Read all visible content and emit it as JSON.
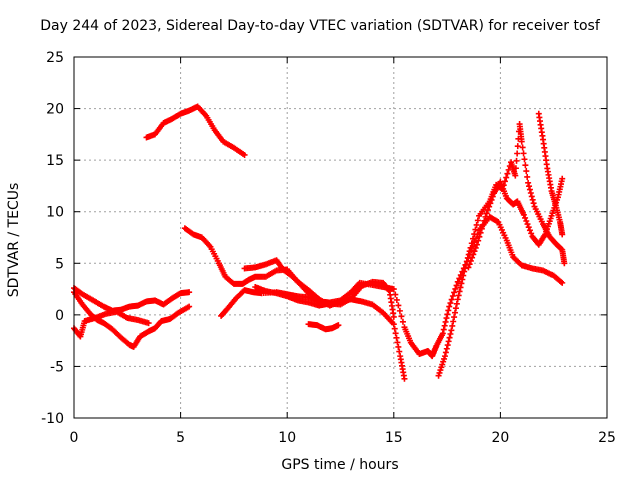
{
  "chart_data": {
    "type": "scatter",
    "title": "Day 244 of 2023, Sidereal Day-to-day VTEC variation (SDTVAR) for receiver tosf",
    "xlabel": "GPS time / hours",
    "ylabel": "SDTVAR / TECUs",
    "xlim": [
      0,
      25
    ],
    "ylim": [
      -10,
      25
    ],
    "xticks": [
      0,
      5,
      10,
      15,
      20,
      25
    ],
    "yticks": [
      -10,
      -5,
      0,
      5,
      10,
      15,
      20,
      25
    ],
    "grid": true,
    "marker": "+",
    "color": "#ff0000",
    "series": [
      {
        "name": "trace-1",
        "points": [
          [
            0,
            2.6
          ],
          [
            0.4,
            2.0
          ],
          [
            0.9,
            1.4
          ],
          [
            1.4,
            0.8
          ],
          [
            1.8,
            0.4
          ],
          [
            2.2,
            0.5
          ],
          [
            2.6,
            0.8
          ],
          [
            3.0,
            0.9
          ],
          [
            3.4,
            1.3
          ],
          [
            3.8,
            1.4
          ],
          [
            4.2,
            1.0
          ],
          [
            4.6,
            1.6
          ],
          [
            5.0,
            2.1
          ],
          [
            5.4,
            2.2
          ]
        ]
      },
      {
        "name": "trace-2",
        "points": [
          [
            0,
            2.2
          ],
          [
            0.4,
            1.0
          ],
          [
            0.8,
            0.0
          ],
          [
            1.1,
            -0.5
          ],
          [
            1.4,
            -0.8
          ],
          [
            1.8,
            -1.4
          ],
          [
            2.2,
            -2.2
          ],
          [
            2.6,
            -2.9
          ],
          [
            2.8,
            -3.1
          ],
          [
            3.1,
            -2.1
          ],
          [
            3.5,
            -1.6
          ],
          [
            3.8,
            -1.3
          ],
          [
            4.1,
            -0.6
          ],
          [
            4.5,
            -0.4
          ],
          [
            4.9,
            0.2
          ],
          [
            5.4,
            0.8
          ]
        ]
      },
      {
        "name": "trace-3",
        "points": [
          [
            0,
            -1.3
          ],
          [
            0.3,
            -2.1
          ],
          [
            0.5,
            -0.6
          ],
          [
            1.0,
            -0.3
          ],
          [
            1.5,
            0.1
          ],
          [
            2.0,
            0.3
          ],
          [
            2.5,
            -0.3
          ],
          [
            3.0,
            -0.5
          ],
          [
            3.5,
            -0.8
          ]
        ]
      },
      {
        "name": "trace-4",
        "points": [
          [
            3.4,
            17.2
          ],
          [
            3.8,
            17.5
          ],
          [
            4.2,
            18.6
          ],
          [
            4.6,
            19.0
          ],
          [
            5.0,
            19.5
          ],
          [
            5.4,
            19.8
          ],
          [
            5.8,
            20.2
          ],
          [
            6.2,
            19.3
          ],
          [
            6.6,
            17.9
          ],
          [
            7.0,
            16.8
          ],
          [
            7.5,
            16.2
          ],
          [
            8.0,
            15.5
          ]
        ]
      },
      {
        "name": "trace-5",
        "points": [
          [
            5.2,
            8.4
          ],
          [
            5.6,
            7.8
          ],
          [
            6.0,
            7.5
          ],
          [
            6.4,
            6.6
          ],
          [
            6.8,
            5.0
          ],
          [
            7.1,
            3.7
          ],
          [
            7.5,
            3.0
          ],
          [
            7.9,
            3.0
          ],
          [
            8.2,
            3.4
          ],
          [
            8.5,
            3.7
          ],
          [
            9.0,
            3.7
          ],
          [
            9.5,
            4.3
          ],
          [
            10.0,
            4.4
          ],
          [
            10.5,
            3.2
          ],
          [
            11.0,
            2.4
          ],
          [
            11.5,
            1.5
          ],
          [
            12.0,
            0.9
          ],
          [
            12.5,
            1.3
          ],
          [
            13.0,
            1.5
          ],
          [
            13.5,
            1.3
          ],
          [
            14.0,
            1.0
          ],
          [
            14.5,
            0.2
          ],
          [
            15.0,
            -0.9
          ],
          [
            15.3,
            -4.0
          ],
          [
            15.5,
            -6.2
          ]
        ]
      },
      {
        "name": "trace-6",
        "points": [
          [
            6.9,
            -0.1
          ],
          [
            7.2,
            0.6
          ],
          [
            7.6,
            1.6
          ],
          [
            8.0,
            2.4
          ],
          [
            8.4,
            2.2
          ],
          [
            8.8,
            2.1
          ],
          [
            9.5,
            2.2
          ],
          [
            10.0,
            2.0
          ],
          [
            10.5,
            1.8
          ],
          [
            11.0,
            1.7
          ],
          [
            11.5,
            1.3
          ],
          [
            12.0,
            1.2
          ],
          [
            12.5,
            1.4
          ],
          [
            13.0,
            2.2
          ],
          [
            13.4,
            3.1
          ],
          [
            14.0,
            2.9
          ],
          [
            14.5,
            2.7
          ],
          [
            15.0,
            2.5
          ],
          [
            15.5,
            -1.2
          ],
          [
            15.8,
            -2.7
          ],
          [
            16.2,
            -3.8
          ],
          [
            16.6,
            -3.5
          ],
          [
            16.8,
            -4.0
          ],
          [
            17.0,
            -3.0
          ],
          [
            17.3,
            -1.8
          ],
          [
            17.6,
            0.8
          ],
          [
            18.0,
            3.2
          ],
          [
            18.5,
            5.5
          ],
          [
            19.0,
            8.2
          ],
          [
            19.5,
            9.5
          ],
          [
            19.9,
            9.0
          ],
          [
            20.3,
            7.2
          ],
          [
            20.6,
            5.6
          ],
          [
            21.0,
            4.8
          ],
          [
            21.5,
            4.5
          ],
          [
            22.0,
            4.3
          ],
          [
            22.5,
            3.8
          ],
          [
            22.9,
            3.1
          ]
        ]
      },
      {
        "name": "trace-7",
        "points": [
          [
            8.0,
            4.5
          ],
          [
            8.5,
            4.6
          ],
          [
            9.0,
            4.9
          ],
          [
            9.5,
            5.3
          ],
          [
            9.8,
            4.4
          ],
          [
            10.2,
            3.8
          ],
          [
            10.6,
            3.0
          ],
          [
            11.0,
            2.1
          ],
          [
            11.5,
            1.5
          ]
        ]
      },
      {
        "name": "trace-8",
        "points": [
          [
            11.0,
            -0.9
          ],
          [
            11.4,
            -1.0
          ],
          [
            11.8,
            -1.4
          ],
          [
            12.1,
            -1.3
          ],
          [
            12.4,
            -1.0
          ]
        ]
      },
      {
        "name": "trace-9",
        "points": [
          [
            17.1,
            -5.9
          ],
          [
            17.4,
            -4.0
          ],
          [
            17.7,
            -1.5
          ],
          [
            18.0,
            1.5
          ],
          [
            18.3,
            4.2
          ],
          [
            18.6,
            6.5
          ],
          [
            19.0,
            9.6
          ],
          [
            19.5,
            11.0
          ],
          [
            19.8,
            12.6
          ],
          [
            20.1,
            12.2
          ],
          [
            20.5,
            14.8
          ],
          [
            20.7,
            13.5
          ],
          [
            20.9,
            18.5
          ],
          [
            21.0,
            16.8
          ],
          [
            21.3,
            12.8
          ],
          [
            21.6,
            10.5
          ],
          [
            22.0,
            8.8
          ],
          [
            22.3,
            7.6
          ],
          [
            22.6,
            6.9
          ],
          [
            22.9,
            6.3
          ],
          [
            23.0,
            5.0
          ]
        ]
      },
      {
        "name": "trace-10",
        "points": [
          [
            18.5,
            4.6
          ],
          [
            18.9,
            6.8
          ],
          [
            19.3,
            9.5
          ],
          [
            19.7,
            11.8
          ],
          [
            20.0,
            12.9
          ],
          [
            20.3,
            11.3
          ],
          [
            20.6,
            10.7
          ],
          [
            20.8,
            11.0
          ],
          [
            21.1,
            9.7
          ],
          [
            21.5,
            7.6
          ],
          [
            21.8,
            6.8
          ],
          [
            22.1,
            7.8
          ],
          [
            22.4,
            9.6
          ],
          [
            22.7,
            11.4
          ],
          [
            22.9,
            13.2
          ]
        ]
      },
      {
        "name": "trace-11",
        "points": [
          [
            21.8,
            19.5
          ],
          [
            22.0,
            17.0
          ],
          [
            22.2,
            14.2
          ],
          [
            22.4,
            12.0
          ],
          [
            22.6,
            10.6
          ],
          [
            22.8,
            9.0
          ],
          [
            22.9,
            7.8
          ]
        ]
      },
      {
        "name": "trace-12",
        "points": [
          [
            8.5,
            2.7
          ],
          [
            9.0,
            2.3
          ],
          [
            9.5,
            2.1
          ],
          [
            10.0,
            1.8
          ],
          [
            10.5,
            1.4
          ],
          [
            11.0,
            1.2
          ],
          [
            11.5,
            0.9
          ],
          [
            12.0,
            1.1
          ],
          [
            12.5,
            1.0
          ],
          [
            13.0,
            1.6
          ],
          [
            13.5,
            2.8
          ],
          [
            14.0,
            3.2
          ],
          [
            14.5,
            3.1
          ],
          [
            14.8,
            2.3
          ],
          [
            15.0,
            -0.2
          ]
        ]
      }
    ]
  }
}
